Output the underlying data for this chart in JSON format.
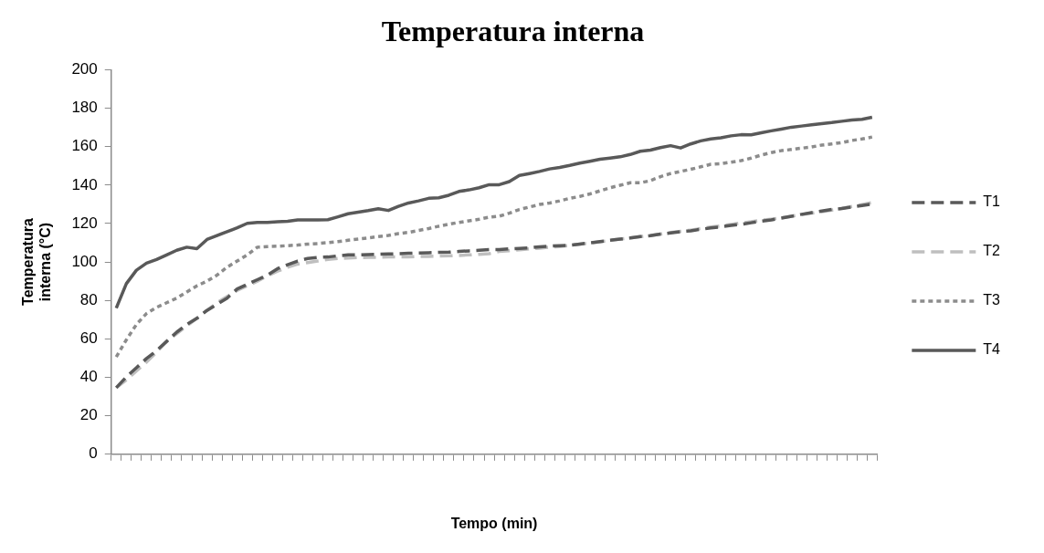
{
  "chart_data": {
    "type": "line",
    "title": "Temperatura interna",
    "xlabel": "Tempo (min)",
    "ylabel": "Temperatura interna (°C)",
    "categories": [
      null,
      null,
      null,
      null,
      null,
      null,
      null,
      null,
      null,
      null,
      null,
      null,
      null,
      null,
      null,
      null,
      null,
      null,
      null,
      null,
      null,
      null,
      null,
      null,
      null,
      null,
      null,
      null,
      null,
      null,
      null,
      null,
      null,
      null,
      null,
      null,
      null,
      null,
      null,
      null,
      null,
      null,
      null,
      null,
      null,
      null,
      null,
      null,
      null,
      null,
      null,
      null,
      null,
      null,
      null,
      null,
      null,
      null,
      null,
      null,
      null,
      null,
      null,
      null,
      null,
      null,
      null,
      null,
      null,
      null,
      null,
      null,
      null,
      null,
      null,
      null
    ],
    "ylim": [
      0,
      200
    ],
    "yticks": [
      0,
      20,
      40,
      60,
      80,
      100,
      120,
      140,
      160,
      180,
      200
    ],
    "grid": false,
    "legend": "right",
    "tick_labels": "y",
    "marker": "none",
    "series": [
      {
        "name": "T1",
        "color": "#595959",
        "line_style": "dashed",
        "values": [
          34.6,
          40.2,
          45.0,
          49.8,
          53.9,
          58.7,
          63.5,
          67.5,
          70.7,
          74.8,
          78.0,
          81.2,
          86.0,
          88.4,
          90.8,
          93.2,
          96.5,
          98.6,
          100.5,
          101.8,
          102.4,
          102.6,
          103.2,
          103.7,
          103.7,
          103.9,
          104.0,
          104.2,
          104.3,
          104.5,
          104.7,
          104.8,
          105.0,
          105.1,
          105.5,
          105.8,
          106.1,
          106.4,
          106.4,
          106.8,
          107.1,
          107.4,
          107.9,
          108.2,
          108.5,
          108.7,
          109.3,
          110.0,
          110.6,
          111.3,
          111.9,
          112.5,
          113.2,
          113.7,
          114.5,
          115.1,
          115.8,
          116.2,
          117.0,
          117.7,
          118.3,
          119.0,
          119.6,
          120.4,
          121.2,
          121.9,
          122.8,
          123.8,
          124.8,
          125.7,
          126.5,
          127.3,
          127.8,
          128.6,
          129.4,
          130.1
        ]
      },
      {
        "name": "T2",
        "color": "#bfbfbf",
        "line_style": "dashed",
        "values": [
          34.6,
          38.6,
          43.4,
          47.9,
          53.1,
          58.7,
          62.7,
          66.7,
          70.7,
          74.8,
          78.8,
          82.0,
          85.2,
          87.6,
          90.0,
          92.8,
          95.2,
          97.3,
          98.9,
          99.7,
          100.5,
          101.3,
          101.8,
          102.1,
          102.3,
          102.4,
          102.4,
          102.6,
          102.6,
          102.7,
          102.9,
          102.9,
          103.1,
          103.2,
          103.4,
          103.7,
          104.0,
          104.3,
          105.5,
          105.9,
          106.3,
          106.8,
          107.2,
          107.7,
          108.0,
          108.7,
          109.3,
          109.8,
          110.5,
          111.3,
          111.9,
          112.5,
          113.2,
          113.8,
          114.5,
          115.3,
          115.9,
          116.6,
          117.4,
          118.2,
          118.8,
          119.5,
          120.3,
          120.9,
          121.7,
          122.3,
          123.0,
          123.8,
          124.6,
          125.4,
          126.2,
          127.0,
          127.9,
          128.9,
          129.9,
          130.9
        ]
      },
      {
        "name": "T3",
        "color": "#8c8c8c",
        "line_style": "dotted",
        "values": [
          50.6,
          59.5,
          67.5,
          73.2,
          76.4,
          78.8,
          81.2,
          84.4,
          87.6,
          90.0,
          93.2,
          97.3,
          100.5,
          103.7,
          107.7,
          108.0,
          108.2,
          108.5,
          108.8,
          109.3,
          109.6,
          110.1,
          110.6,
          111.3,
          111.9,
          112.5,
          113.2,
          113.8,
          114.8,
          115.4,
          116.4,
          117.4,
          118.6,
          119.6,
          120.6,
          121.4,
          122.2,
          123.3,
          123.8,
          125.4,
          127.3,
          128.6,
          129.9,
          130.7,
          131.8,
          133.1,
          134.1,
          135.4,
          137.0,
          138.6,
          139.9,
          141.2,
          141.2,
          142.3,
          144.4,
          146.0,
          147.1,
          148.2,
          149.5,
          150.8,
          151.1,
          151.9,
          152.7,
          154.0,
          155.6,
          156.9,
          157.9,
          158.5,
          159.2,
          159.8,
          160.8,
          161.4,
          162.1,
          163.2,
          164.0,
          165.0
        ]
      },
      {
        "name": "T4",
        "color": "#595959",
        "line_style": "solid",
        "values": [
          76.0,
          88.7,
          95.7,
          99.4,
          101.3,
          103.7,
          106.1,
          107.7,
          106.9,
          111.7,
          113.8,
          115.8,
          117.8,
          120.1,
          120.6,
          120.6,
          120.9,
          121.2,
          121.9,
          121.9,
          121.9,
          122.0,
          123.5,
          125.1,
          125.9,
          126.7,
          127.7,
          126.8,
          128.9,
          130.7,
          131.8,
          133.1,
          133.4,
          134.7,
          136.7,
          137.5,
          138.6,
          140.2,
          140.2,
          141.8,
          145.0,
          146.0,
          147.1,
          148.4,
          149.2,
          150.2,
          151.4,
          152.4,
          153.4,
          154.0,
          154.7,
          155.9,
          157.6,
          158.2,
          159.5,
          160.5,
          159.3,
          161.4,
          163.0,
          164.0,
          164.6,
          165.6,
          166.2,
          166.1,
          167.2,
          168.2,
          169.1,
          170.1,
          170.7,
          171.4,
          172.0,
          172.5,
          173.2,
          173.8,
          174.2,
          175.3
        ]
      }
    ]
  }
}
